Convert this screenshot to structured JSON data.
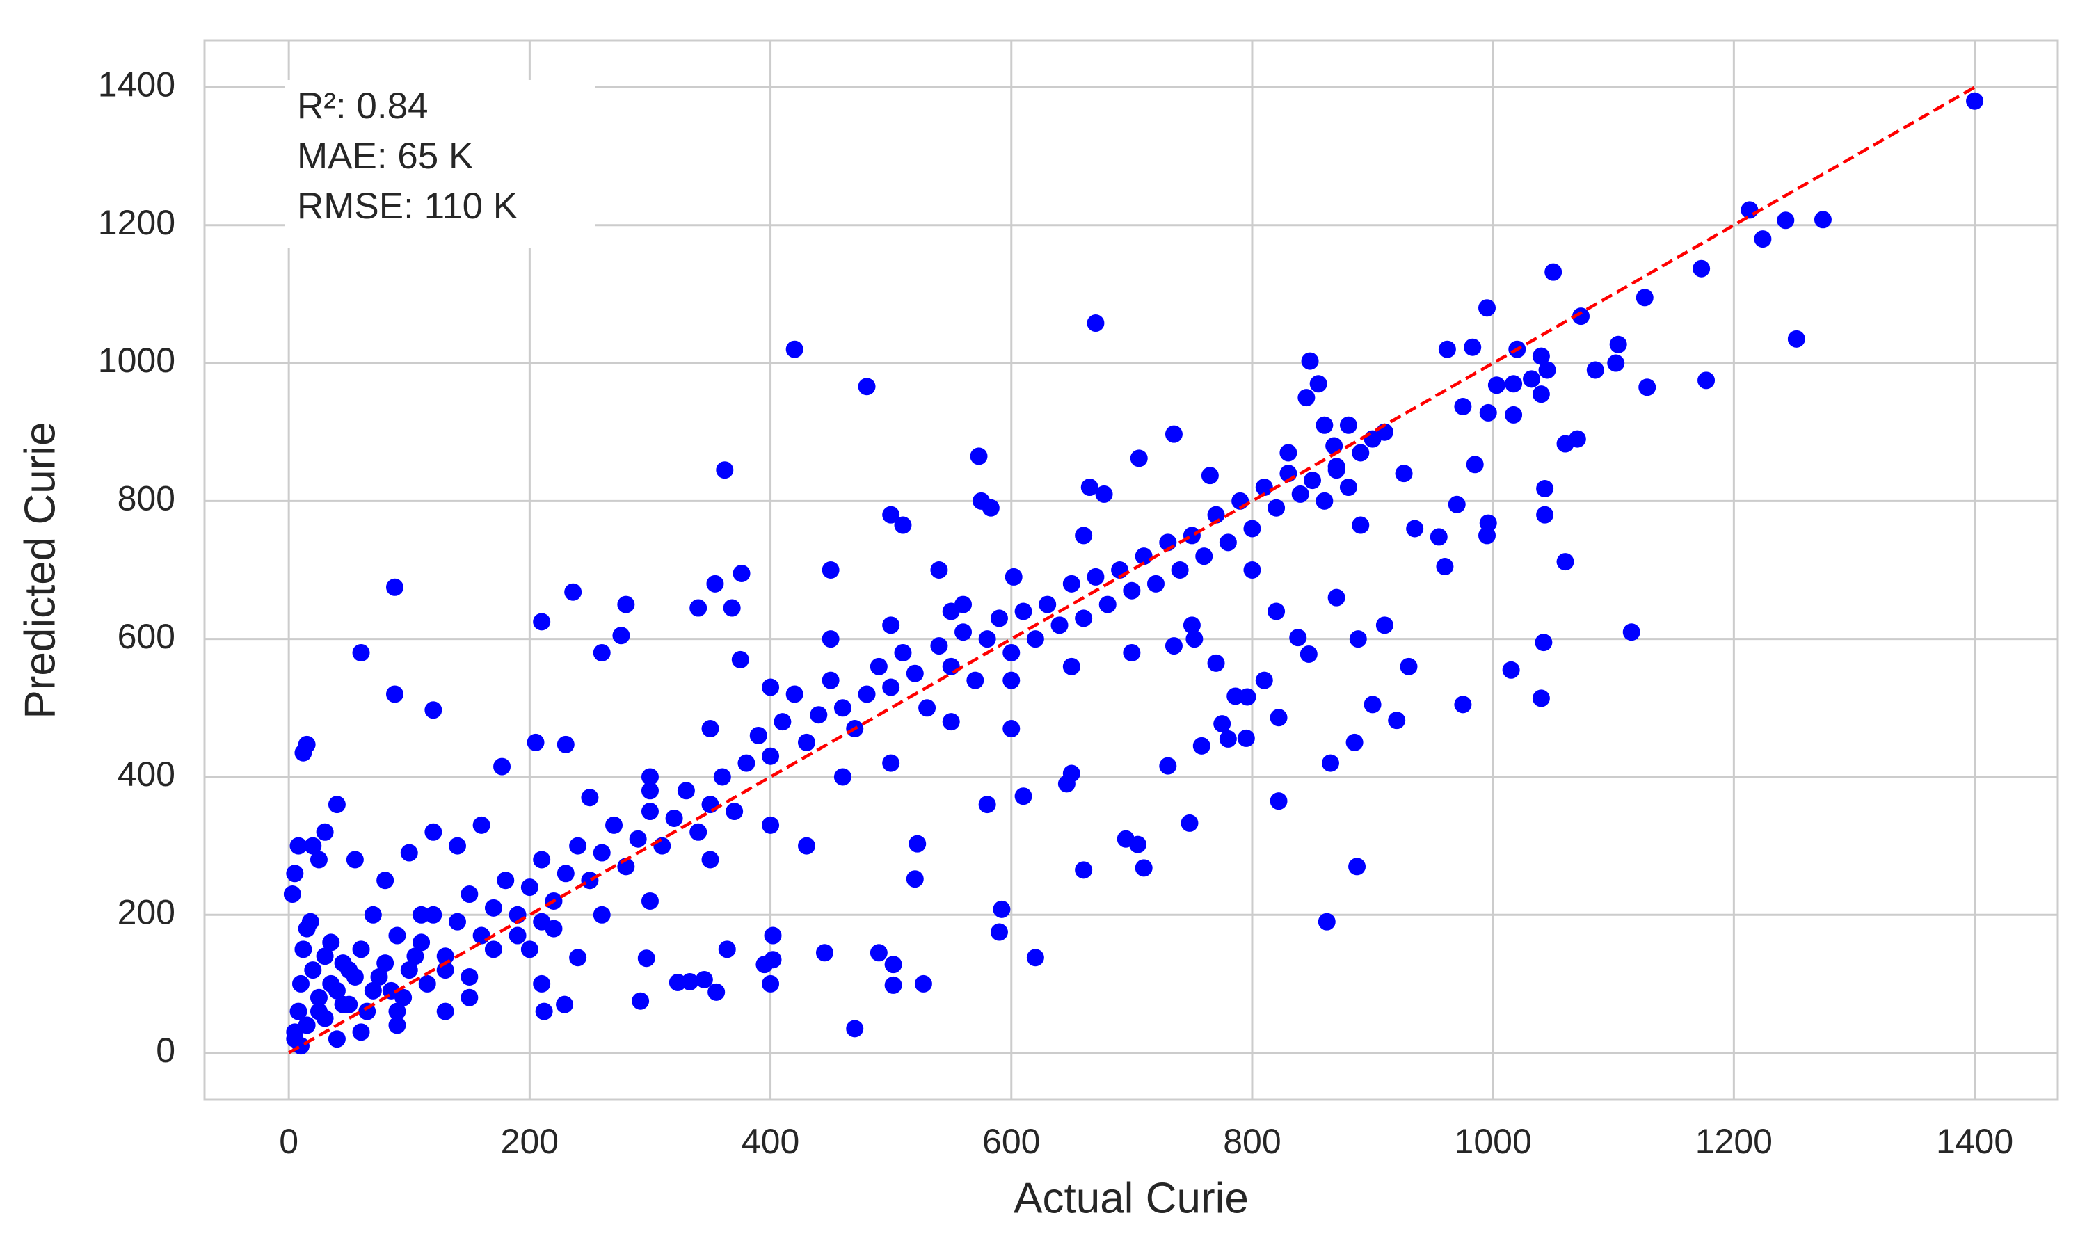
{
  "chart_data": {
    "type": "scatter",
    "xlabel": "Actual Curie",
    "ylabel": "Predicted Curie",
    "annotation": [
      "R²: 0.84",
      "MAE: 65 K",
      "RMSE: 110 K"
    ],
    "color": "#0000ff",
    "grid": true,
    "xlim": [
      -70,
      1469
    ],
    "ylim": [
      -68,
      1468
    ],
    "xticks": [
      0,
      200,
      400,
      600,
      800,
      1000,
      1200,
      1400
    ],
    "yticks": [
      0,
      200,
      400,
      600,
      800,
      1000,
      1200,
      1400
    ],
    "reference_line": {
      "x": [
        0,
        1400
      ],
      "y": [
        0,
        1400
      ],
      "color": "#ff0000"
    },
    "x": [
      1400,
      1213,
      1243,
      1274,
      1224,
      1050,
      1173,
      1126,
      995,
      1073,
      1252,
      1104,
      1102,
      1177,
      1128,
      670,
      420,
      480,
      848,
      962,
      983,
      1040,
      1045,
      1085,
      1017,
      1020,
      1032,
      1003,
      996,
      1017,
      975,
      1040,
      1070,
      1060,
      1043,
      1043,
      1060,
      1115,
      1042,
      1040,
      1015,
      975,
      930,
      920,
      910,
      888,
      885,
      887,
      862,
      865,
      900,
      847,
      838,
      822,
      822,
      810,
      796,
      786,
      780,
      795,
      775,
      758,
      770,
      752,
      748,
      730,
      735,
      710,
      705,
      695,
      660,
      650,
      646,
      620,
      610,
      592,
      590,
      580,
      520,
      522,
      527,
      502,
      502,
      490,
      470,
      445,
      400,
      402,
      402,
      395,
      364,
      345,
      355,
      323,
      333,
      292,
      297,
      300,
      240,
      229,
      212,
      210,
      205,
      230,
      210,
      236,
      260,
      276,
      280,
      340,
      354,
      362,
      368,
      376,
      375,
      88,
      60,
      88,
      120,
      15,
      12,
      177,
      573,
      575,
      583,
      602,
      660,
      665,
      677,
      706,
      735,
      765,
      830,
      860,
      880,
      910,
      926,
      935,
      955,
      970,
      985,
      996,
      995,
      960,
      890,
      870,
      868,
      855,
      845,
      5,
      8,
      10,
      12,
      15,
      20,
      25,
      30,
      35,
      40,
      45,
      50,
      55,
      60,
      70,
      80,
      90,
      100,
      110,
      120,
      130,
      140,
      150,
      160,
      170,
      180,
      190,
      200,
      210,
      220,
      230,
      240,
      250,
      260,
      270,
      280,
      290,
      300,
      310,
      320,
      330,
      340,
      350,
      360,
      370,
      380,
      390,
      400,
      410,
      420,
      430,
      440,
      450,
      460,
      470,
      480,
      490,
      500,
      510,
      520,
      530,
      540,
      550,
      560,
      570,
      580,
      590,
      600,
      610,
      620,
      630,
      640,
      650,
      660,
      670,
      680,
      690,
      700,
      710,
      720,
      730,
      740,
      750,
      760,
      770,
      780,
      790,
      800,
      810,
      820,
      830,
      840,
      850,
      860,
      870,
      880,
      890,
      900,
      20,
      30,
      40,
      25,
      55,
      100,
      120,
      140,
      160,
      80,
      130,
      150,
      90,
      60,
      40,
      10,
      5,
      3,
      5,
      18,
      8,
      200,
      220,
      260,
      300,
      350,
      400,
      430,
      460,
      500,
      550,
      600,
      650,
      700,
      750,
      800,
      820,
      870,
      600,
      550,
      500,
      450,
      400,
      350,
      300,
      250,
      450,
      500,
      510,
      540,
      560,
      15,
      25,
      35,
      45,
      65,
      75,
      85,
      95,
      105,
      115,
      30,
      50,
      70,
      90,
      110,
      130,
      150,
      170,
      190,
      210
    ],
    "values": [
      1380,
      1222,
      1207,
      1208,
      1180,
      1132,
      1137,
      1095,
      1080,
      1068,
      1035,
      1027,
      1000,
      975,
      965,
      1058,
      1020,
      966,
      1003,
      1020,
      1023,
      1010,
      990,
      990,
      970,
      1020,
      977,
      968,
      928,
      925,
      937,
      955,
      890,
      883,
      818,
      780,
      712,
      610,
      595,
      514,
      555,
      505,
      560,
      482,
      620,
      600,
      450,
      270,
      190,
      420,
      505,
      578,
      602,
      365,
      486,
      540,
      516,
      517,
      455,
      456,
      477,
      445,
      565,
      600,
      333,
      416,
      590,
      268,
      302,
      310,
      265,
      405,
      390,
      138,
      372,
      208,
      175,
      360,
      252,
      303,
      100,
      128,
      98,
      145,
      35,
      145,
      100,
      170,
      135,
      128,
      150,
      106,
      88,
      102,
      103,
      75,
      137,
      380,
      138,
      70,
      60,
      100,
      450,
      447,
      625,
      668,
      580,
      605,
      650,
      645,
      680,
      845,
      645,
      695,
      570,
      675,
      580,
      520,
      497,
      447,
      435,
      415,
      865,
      800,
      790,
      690,
      750,
      820,
      810,
      862,
      897,
      837,
      870,
      910,
      910,
      900,
      840,
      760,
      748,
      795,
      853,
      768,
      750,
      705,
      765,
      845,
      880,
      970,
      950,
      30,
      60,
      100,
      150,
      180,
      120,
      80,
      50,
      160,
      90,
      130,
      70,
      110,
      150,
      90,
      130,
      170,
      120,
      160,
      200,
      140,
      190,
      230,
      170,
      210,
      250,
      200,
      240,
      280,
      220,
      260,
      300,
      250,
      290,
      330,
      270,
      310,
      350,
      300,
      340,
      380,
      320,
      360,
      400,
      350,
      420,
      460,
      430,
      480,
      520,
      450,
      490,
      540,
      500,
      470,
      520,
      560,
      530,
      580,
      550,
      500,
      590,
      560,
      610,
      540,
      600,
      630,
      580,
      640,
      600,
      650,
      620,
      680,
      630,
      690,
      650,
      700,
      670,
      720,
      680,
      740,
      700,
      750,
      720,
      780,
      740,
      800,
      760,
      820,
      790,
      840,
      810,
      830,
      800,
      850,
      820,
      870,
      890,
      300,
      320,
      360,
      280,
      280,
      290,
      320,
      300,
      330,
      250,
      60,
      80,
      40,
      30,
      20,
      10,
      20,
      230,
      260,
      190,
      300,
      150,
      180,
      200,
      220,
      280,
      330,
      300,
      400,
      420,
      480,
      470,
      560,
      580,
      620,
      700,
      640,
      660,
      540,
      640,
      620,
      600,
      530,
      470,
      400,
      370,
      700,
      780,
      765,
      700,
      650,
      40,
      60,
      100,
      70,
      60,
      110,
      90,
      80,
      140,
      100,
      140,
      120,
      200,
      60,
      200,
      120,
      110,
      150,
      170,
      190
    ]
  }
}
